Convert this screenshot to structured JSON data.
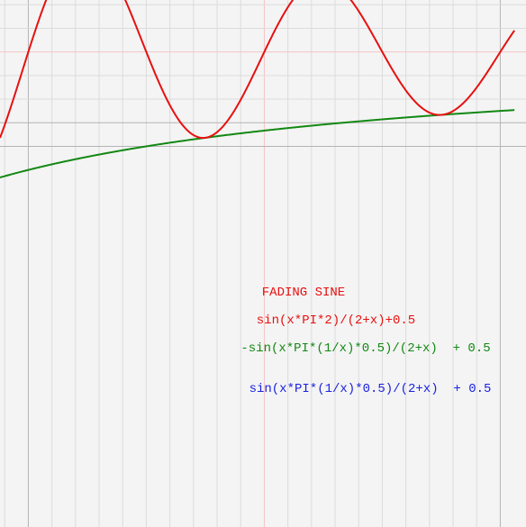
{
  "chart_data": {
    "type": "line",
    "title": "FADING SINE",
    "xlim": [
      -0.12,
      2.06
    ],
    "ylim": [
      0.14,
      0.72
    ],
    "grid": true,
    "grid_step": 0.1,
    "series": [
      {
        "name": "sin(x*PI*2)/(2+x)+0.5",
        "color": "#e81010",
        "formula": "fading_sine"
      },
      {
        "name": "-sin(x*PI*(1/x)*0.5)/(2+x)  + 0.5",
        "color": "#128812",
        "formula": "lower_envelope"
      },
      {
        "name": "sin(x*PI*(1/x)*0.5)/(2+x)  + 0.5",
        "color": "#1a22e0",
        "formula": "upper_envelope"
      }
    ],
    "legend_placement": "center",
    "colors": {
      "background": "#f4f4f4",
      "minor_grid": "#dcdcdc",
      "major_grid": "#b4b4b4",
      "origin_grid": "#f4c4c4",
      "title": "#e81010"
    }
  }
}
